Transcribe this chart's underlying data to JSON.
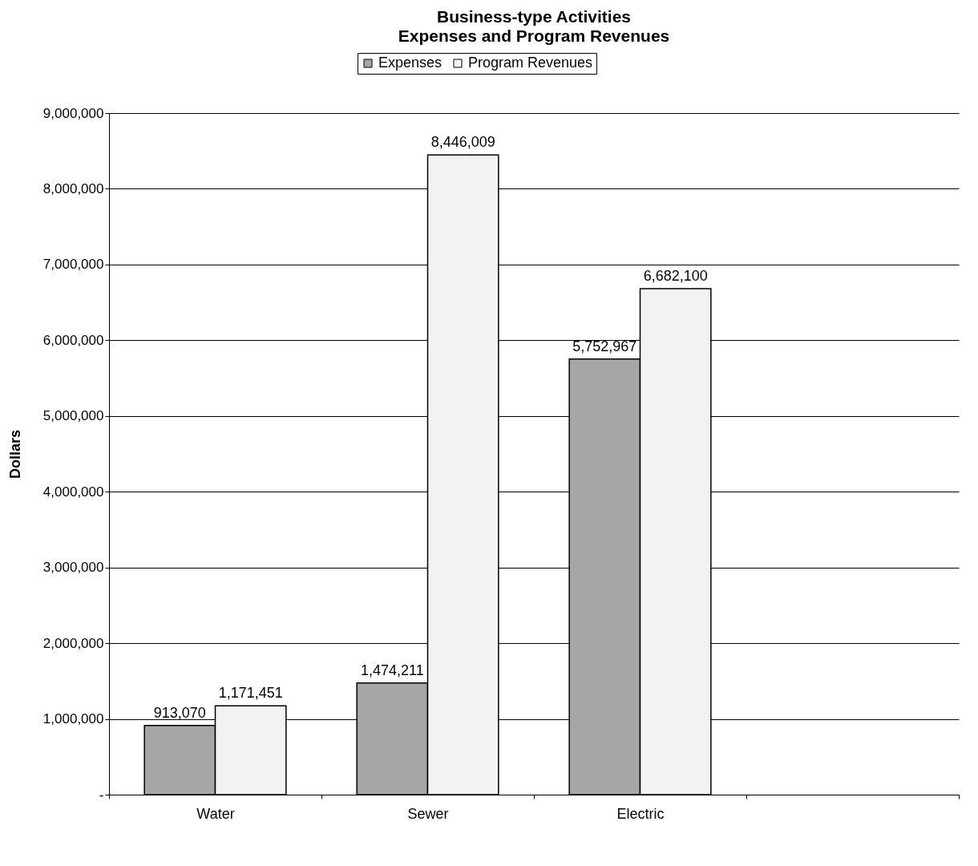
{
  "chart_data": {
    "type": "bar",
    "title": "Business-type Activities",
    "subtitle": "Expenses and Program Revenues",
    "ylabel": "Dollars",
    "categories": [
      "Water",
      "Sewer",
      "Electric",
      null
    ],
    "series": [
      {
        "name": "Expenses",
        "color": "#a6a6a6",
        "values": [
          913070,
          1474211,
          5752967,
          null
        ],
        "value_labels": [
          "913,070",
          "1,474,211",
          "5,752,967",
          null
        ]
      },
      {
        "name": "Program Revenues",
        "color": "#f2f2f2",
        "values": [
          1171451,
          8446009,
          6682100,
          null
        ],
        "value_labels": [
          "1,171,451",
          "8,446,009",
          "6,682,100",
          null
        ]
      }
    ],
    "ylim": [
      0,
      9000000
    ],
    "yticks": [
      {
        "value": 0,
        "label": "-"
      },
      {
        "value": 1000000,
        "label": "1,000,000"
      },
      {
        "value": 2000000,
        "label": "2,000,000"
      },
      {
        "value": 3000000,
        "label": "3,000,000"
      },
      {
        "value": 4000000,
        "label": "4,000,000"
      },
      {
        "value": 5000000,
        "label": "5,000,000"
      },
      {
        "value": 6000000,
        "label": "6,000,000"
      },
      {
        "value": 7000000,
        "label": "7,000,000"
      },
      {
        "value": 8000000,
        "label": "8,000,000"
      },
      {
        "value": 9000000,
        "label": "9,000,000"
      }
    ],
    "grid": "y",
    "legend": "top"
  }
}
